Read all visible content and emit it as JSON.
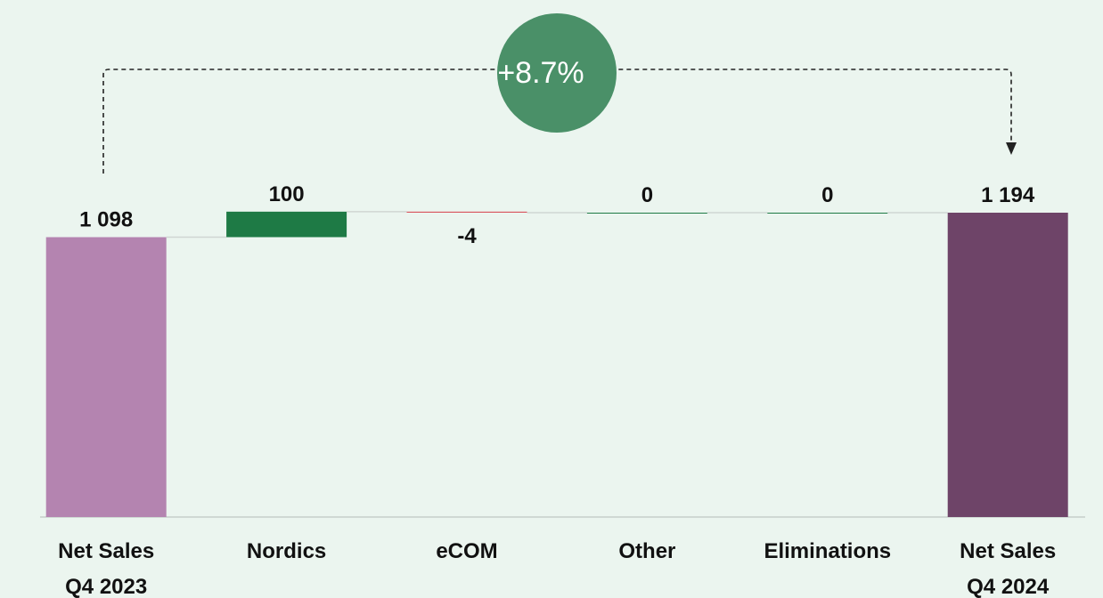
{
  "chart_data": {
    "type": "waterfall",
    "categories": [
      "Net Sales\nQ4 2023",
      "Nordics",
      "eCOM",
      "Other",
      "Eliminations",
      "Net Sales\nQ4 2024"
    ],
    "values": [
      1098,
      100,
      -4,
      0,
      0,
      1194
    ],
    "value_labels": [
      "1 098",
      "100",
      "-4",
      "0",
      "0",
      "1 194"
    ],
    "colors": [
      "#b484b0",
      "#1e7a45",
      "#d9545e",
      "#1e7a45",
      "#1e7a45",
      "#6e4468"
    ],
    "annotation": "+8.7%"
  }
}
